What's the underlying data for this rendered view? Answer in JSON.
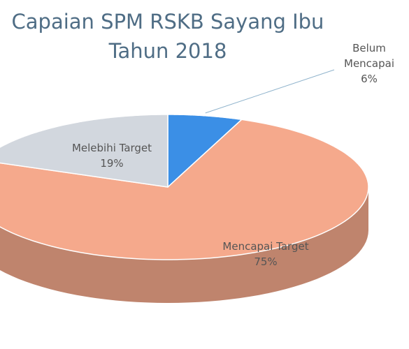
{
  "chart_data": {
    "type": "pie",
    "title": "Capaian SPM RSKB Sayang Ibu Tahun 2018",
    "categories": [
      "Belum Mencapai",
      "Mencapai Target",
      "Melebihi Target"
    ],
    "values": [
      6,
      75,
      19
    ],
    "value_labels": [
      "6%",
      "75%",
      "19%"
    ],
    "colors": [
      "#3b8fe6",
      "#f5a98c",
      "#d2d7de"
    ]
  }
}
